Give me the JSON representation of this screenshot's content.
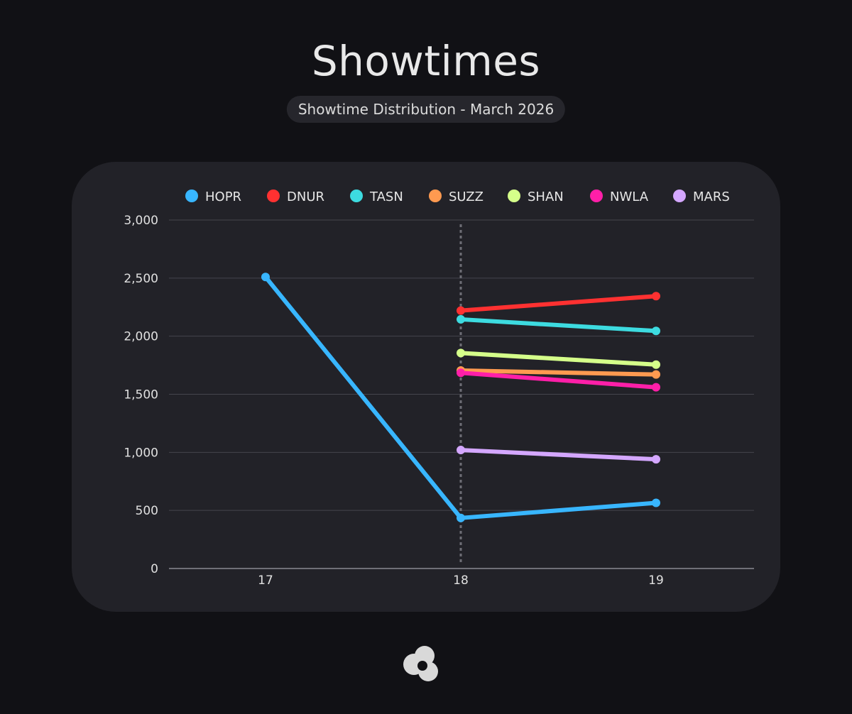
{
  "header": {
    "title": "Showtimes",
    "subtitle": "Showtime Distribution - March 2026"
  },
  "chart_data": {
    "type": "line",
    "title": "Showtimes",
    "subtitle": "Showtime Distribution - March 2026",
    "xlabel": "",
    "ylabel": "",
    "x": [
      "17",
      "18",
      "19"
    ],
    "ylim": [
      0,
      3000
    ],
    "yticks": [
      0,
      500,
      1000,
      1500,
      2000,
      2500,
      3000
    ],
    "ytick_labels": [
      "0",
      "500",
      "1,000",
      "1,500",
      "2,000",
      "2,500",
      "3,000"
    ],
    "grid": true,
    "legend_position": "top",
    "highlight_x": "18",
    "series": [
      {
        "name": "HOPR",
        "color": "#38b6ff",
        "values": [
          2510,
          435,
          565
        ]
      },
      {
        "name": "DNUR",
        "color": "#ff3131",
        "values": [
          null,
          2220,
          2345
        ]
      },
      {
        "name": "TASN",
        "color": "#3ddbe0",
        "values": [
          null,
          2145,
          2045
        ]
      },
      {
        "name": "SUZZ",
        "color": "#ff9a50",
        "values": [
          null,
          1705,
          1670
        ]
      },
      {
        "name": "SHAN",
        "color": "#d5ff8a",
        "values": [
          null,
          1855,
          1755
        ]
      },
      {
        "name": "NWLA",
        "color": "#ff1fa8",
        "values": [
          null,
          1685,
          1560
        ]
      },
      {
        "name": "MARS",
        "color": "#d4a7ff",
        "values": [
          null,
          1020,
          940
        ]
      }
    ]
  }
}
